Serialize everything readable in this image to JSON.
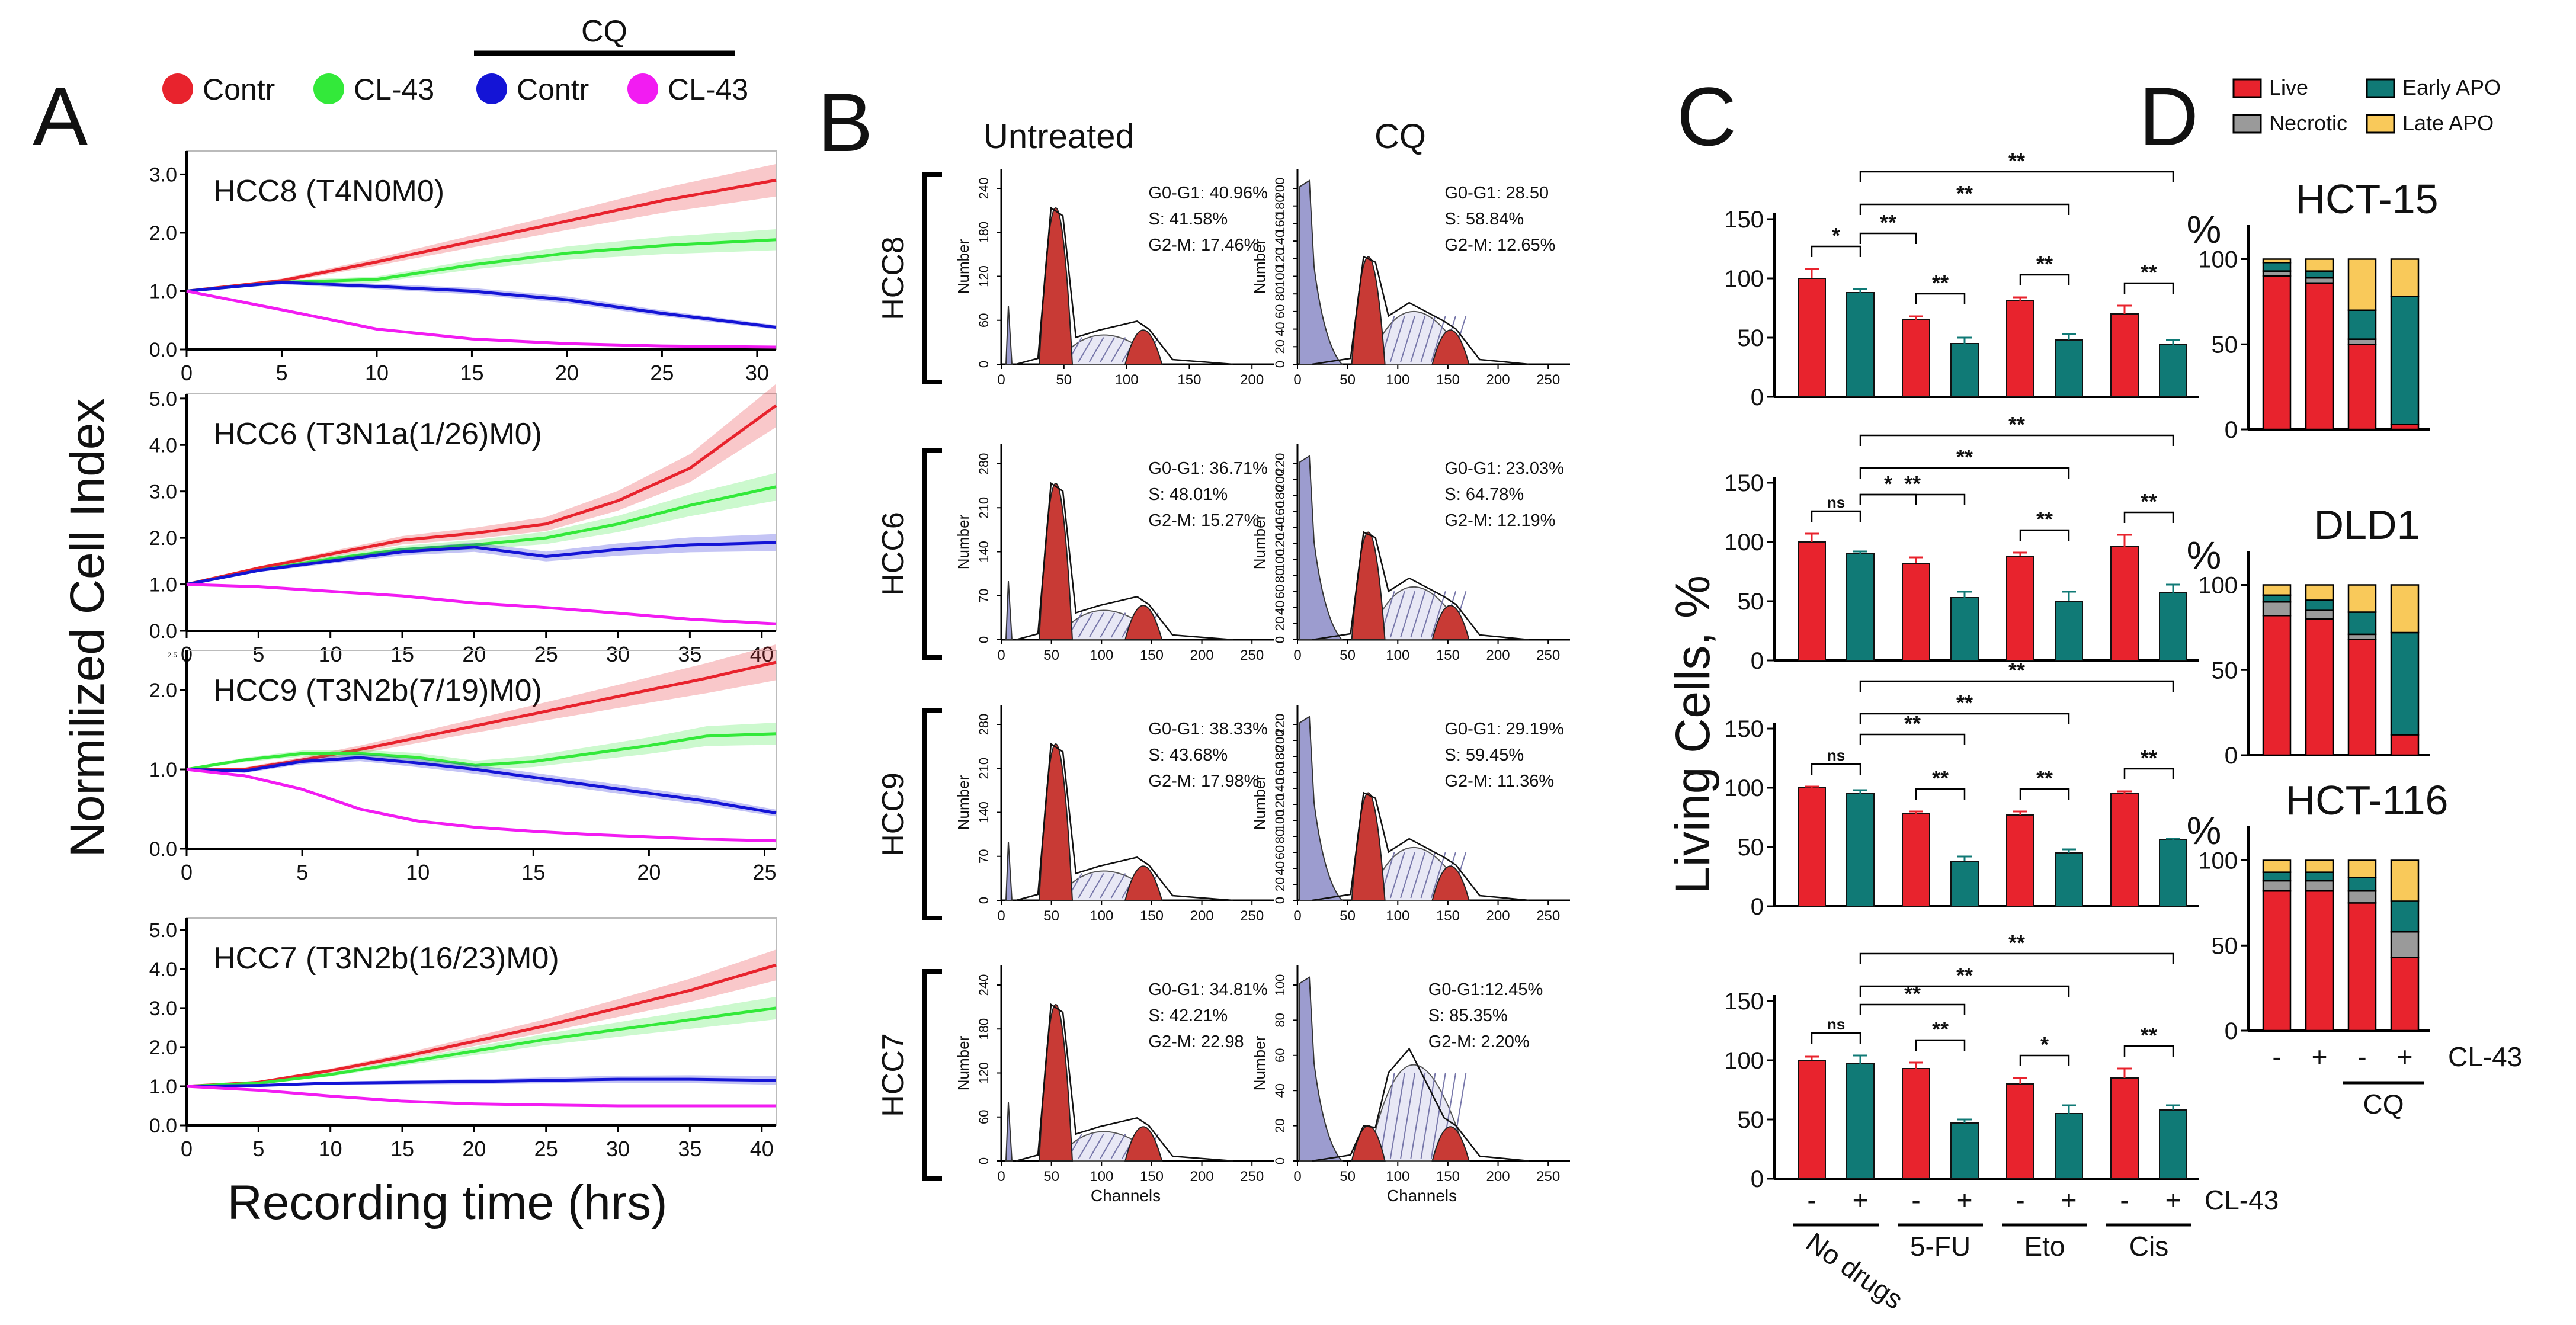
{
  "colors": {
    "red": "#e8232d",
    "green": "#33e93a",
    "blue": "#1414d6",
    "magenta": "#f21cf2",
    "teal": "#107a76",
    "gray": "#9a9a9a",
    "yellow": "#f9c95a",
    "flowred": "#c83a35",
    "flowblue": "#9c9ccf"
  },
  "panels": {
    "A": "A",
    "B": "B",
    "C": "C",
    "D": "D"
  },
  "panelA": {
    "cq_label": "CQ",
    "legend": [
      "Contr",
      "CL-43",
      "Contr",
      "CL-43"
    ],
    "ylabel": "Normilized Cell Index",
    "xlabel": "Recording time (hrs)"
  },
  "panelB": {
    "col_titles": [
      "Untreated",
      "CQ"
    ],
    "ylabel": "Number",
    "xlabel": "Channels"
  },
  "panelC": {
    "ylabel": "Living Cells, %",
    "cl43_label": "CL-43",
    "signs": [
      "-",
      "+",
      "-",
      "+",
      "-",
      "+",
      "-",
      "+"
    ],
    "groups": [
      "No drugs",
      "5-FU",
      "Eto",
      "Cis"
    ]
  },
  "panelD": {
    "legend": [
      "Live",
      "Necrotic",
      "Early APO",
      "Late APO"
    ],
    "pct": "%",
    "signs": [
      "-",
      "+",
      "-",
      "+"
    ],
    "cl43_label": "CL-43",
    "cq_label": "CQ"
  },
  "chart_data": [
    {
      "panel": "A",
      "type": "line",
      "title": "HCC8 (T4N0M0)",
      "xlim": [
        0,
        31
      ],
      "xticks": [
        "0",
        "5",
        "10",
        "15",
        "20",
        "25",
        "30"
      ],
      "ylim": [
        0,
        3.4
      ],
      "yticks": [
        "0.0",
        "1.0",
        "2.0",
        "3.0"
      ],
      "series": [
        {
          "name": "Contr",
          "x": [
            0,
            5,
            10,
            15,
            20,
            25,
            31
          ],
          "y": [
            1.0,
            1.18,
            1.5,
            1.85,
            2.2,
            2.55,
            2.9
          ]
        },
        {
          "name": "CL-43",
          "x": [
            0,
            5,
            10,
            15,
            20,
            25,
            31
          ],
          "y": [
            1.0,
            1.15,
            1.2,
            1.45,
            1.65,
            1.78,
            1.88
          ]
        },
        {
          "name": "CQ Contr",
          "x": [
            0,
            5,
            10,
            15,
            20,
            25,
            31
          ],
          "y": [
            1.0,
            1.15,
            1.08,
            1.0,
            0.85,
            0.62,
            0.38
          ]
        },
        {
          "name": "CQ CL-43",
          "x": [
            0,
            5,
            10,
            15,
            20,
            25,
            31
          ],
          "y": [
            1.0,
            0.68,
            0.35,
            0.18,
            0.1,
            0.06,
            0.04
          ]
        }
      ]
    },
    {
      "panel": "A",
      "type": "line",
      "title": "HCC6 (T3N1a(1/26)M0)",
      "xlim": [
        0,
        41
      ],
      "xticks": [
        "0",
        "5",
        "10",
        "15",
        "20",
        "25",
        "30",
        "35",
        "40"
      ],
      "ylim": [
        0,
        5.1
      ],
      "yticks": [
        "0.0",
        "1.0",
        "2.0",
        "3.0",
        "4.0",
        "5.0"
      ],
      "series": [
        {
          "name": "Contr",
          "x": [
            0,
            5,
            10,
            15,
            20,
            25,
            30,
            35,
            41
          ],
          "y": [
            1.0,
            1.35,
            1.65,
            1.95,
            2.1,
            2.3,
            2.8,
            3.5,
            4.85
          ]
        },
        {
          "name": "CL-43",
          "x": [
            0,
            5,
            10,
            15,
            20,
            25,
            30,
            35,
            41
          ],
          "y": [
            1.0,
            1.3,
            1.55,
            1.75,
            1.85,
            2.0,
            2.3,
            2.7,
            3.1
          ]
        },
        {
          "name": "CQ Contr",
          "x": [
            0,
            5,
            10,
            15,
            20,
            25,
            30,
            35,
            41
          ],
          "y": [
            1.0,
            1.3,
            1.5,
            1.7,
            1.8,
            1.6,
            1.75,
            1.85,
            1.9
          ]
        },
        {
          "name": "CQ CL-43",
          "x": [
            0,
            5,
            10,
            15,
            20,
            25,
            30,
            35,
            41
          ],
          "y": [
            1.0,
            0.95,
            0.85,
            0.75,
            0.6,
            0.5,
            0.38,
            0.25,
            0.15
          ]
        }
      ]
    },
    {
      "panel": "A",
      "type": "line",
      "title": "HCC9 (T3N2b(7/19)M0)",
      "xlim": [
        0,
        25.5
      ],
      "xticks": [
        "0",
        "5",
        "10",
        "15",
        "20",
        "25"
      ],
      "ylim": [
        0,
        2.5
      ],
      "yticks": [
        "0.0",
        "1.0",
        "2.0"
      ],
      "ytopnote": "2.5",
      "series": [
        {
          "name": "Contr",
          "x": [
            0,
            2.5,
            5,
            7.5,
            10,
            12.5,
            15,
            17.5,
            20,
            22.5,
            25.5
          ],
          "y": [
            1.0,
            1.0,
            1.12,
            1.25,
            1.4,
            1.55,
            1.7,
            1.85,
            2.0,
            2.15,
            2.35
          ]
        },
        {
          "name": "CL-43",
          "x": [
            0,
            2.5,
            5,
            7.5,
            10,
            12.5,
            15,
            17.5,
            20,
            22.5,
            25.5
          ],
          "y": [
            1.0,
            1.12,
            1.2,
            1.2,
            1.15,
            1.05,
            1.1,
            1.2,
            1.3,
            1.42,
            1.45
          ]
        },
        {
          "name": "CQ Contr",
          "x": [
            0,
            2.5,
            5,
            7.5,
            10,
            12.5,
            15,
            17.5,
            20,
            22.5,
            25.5
          ],
          "y": [
            1.0,
            0.98,
            1.1,
            1.15,
            1.08,
            1.0,
            0.9,
            0.8,
            0.7,
            0.6,
            0.45
          ]
        },
        {
          "name": "CQ CL-43",
          "x": [
            0,
            2.5,
            5,
            7.5,
            10,
            12.5,
            15,
            17.5,
            20,
            22.5,
            25.5
          ],
          "y": [
            1.0,
            0.92,
            0.75,
            0.5,
            0.35,
            0.27,
            0.22,
            0.18,
            0.15,
            0.12,
            0.1
          ]
        }
      ]
    },
    {
      "panel": "A",
      "type": "line",
      "title": "HCC7 (T3N2b(16/23)M0)",
      "xlim": [
        0,
        41
      ],
      "xticks": [
        "0",
        "5",
        "10",
        "15",
        "20",
        "25",
        "30",
        "35",
        "40"
      ],
      "ylim": [
        0,
        5.3
      ],
      "yticks": [
        "0.0",
        "1.0",
        "2.0",
        "3.0",
        "4.0",
        "5.0"
      ],
      "series": [
        {
          "name": "Contr",
          "x": [
            0,
            5,
            10,
            15,
            20,
            25,
            30,
            35,
            41
          ],
          "y": [
            1.0,
            1.1,
            1.4,
            1.75,
            2.15,
            2.55,
            3.0,
            3.45,
            4.1
          ]
        },
        {
          "name": "CL-43",
          "x": [
            0,
            5,
            10,
            15,
            20,
            25,
            30,
            35,
            41
          ],
          "y": [
            1.0,
            1.08,
            1.3,
            1.6,
            1.9,
            2.2,
            2.45,
            2.7,
            3.0
          ]
        },
        {
          "name": "CQ Contr",
          "x": [
            0,
            5,
            10,
            15,
            20,
            25,
            30,
            35,
            41
          ],
          "y": [
            1.0,
            1.02,
            1.08,
            1.1,
            1.12,
            1.15,
            1.18,
            1.18,
            1.15
          ]
        },
        {
          "name": "CQ CL-43",
          "x": [
            0,
            5,
            10,
            15,
            20,
            25,
            30,
            35,
            41
          ],
          "y": [
            1.0,
            0.9,
            0.75,
            0.62,
            0.55,
            0.52,
            0.5,
            0.5,
            0.5
          ]
        }
      ]
    },
    {
      "panel": "B",
      "type": "area",
      "row": "HCC8",
      "condition": "Untreated",
      "yticks": [
        "0",
        "60",
        "120",
        "180",
        "240"
      ],
      "xticks": [
        "0",
        "50",
        "100",
        "150",
        "200"
      ],
      "stats": [
        "G0-G1: 40.96%",
        "S: 41.58%",
        "G2-M: 17.46%"
      ]
    },
    {
      "panel": "B",
      "type": "area",
      "row": "HCC8",
      "condition": "CQ",
      "yticks": [
        "0",
        "20",
        "40",
        "60",
        "80",
        "100",
        "120",
        "140",
        "160",
        "180",
        "200"
      ],
      "xticks": [
        "0",
        "50",
        "100",
        "150",
        "200",
        "250"
      ],
      "stats": [
        "G0-G1: 28.50",
        "S: 58.84%",
        "G2-M: 12.65%"
      ]
    },
    {
      "panel": "B",
      "type": "area",
      "row": "HCC6",
      "condition": "Untreated",
      "yticks": [
        "0",
        "70",
        "140",
        "210",
        "280"
      ],
      "xticks": [
        "0",
        "50",
        "100",
        "150",
        "200",
        "250"
      ],
      "stats": [
        "G0-G1: 36.71%",
        "S: 48.01%",
        "G2-M: 15.27%"
      ]
    },
    {
      "panel": "B",
      "type": "area",
      "row": "HCC6",
      "condition": "CQ",
      "yticks": [
        "0",
        "20",
        "40",
        "60",
        "80",
        "100",
        "120",
        "140",
        "160",
        "180",
        "200",
        "220"
      ],
      "xticks": [
        "0",
        "50",
        "100",
        "150",
        "200",
        "250"
      ],
      "stats": [
        "G0-G1: 23.03%",
        "S: 64.78%",
        "G2-M: 12.19%"
      ]
    },
    {
      "panel": "B",
      "type": "area",
      "row": "HCC9",
      "condition": "Untreated",
      "yticks": [
        "0",
        "70",
        "140",
        "210",
        "280"
      ],
      "xticks": [
        "0",
        "50",
        "100",
        "150",
        "200",
        "250"
      ],
      "stats": [
        "G0-G1: 38.33%",
        "S: 43.68%",
        "G2-M: 17.98%"
      ]
    },
    {
      "panel": "B",
      "type": "area",
      "row": "HCC9",
      "condition": "CQ",
      "yticks": [
        "0",
        "20",
        "40",
        "60",
        "80",
        "100",
        "120",
        "140",
        "160",
        "180",
        "200",
        "220"
      ],
      "xticks": [
        "0",
        "50",
        "100",
        "150",
        "200",
        "250"
      ],
      "stats": [
        "G0-G1: 29.19%",
        "S: 59.45%",
        "G2-M: 11.36%"
      ]
    },
    {
      "panel": "B",
      "type": "area",
      "row": "HCC7",
      "condition": "Untreated",
      "yticks": [
        "0",
        "60",
        "120",
        "180",
        "240"
      ],
      "xticks": [
        "0",
        "50",
        "100",
        "150",
        "200",
        "250"
      ],
      "stats": [
        "G0-G1: 34.81%",
        "S: 42.21%",
        "G2-M: 22.98"
      ]
    },
    {
      "panel": "B",
      "type": "area",
      "row": "HCC7",
      "condition": "CQ",
      "yticks": [
        "0",
        "20",
        "40",
        "60",
        "80",
        "100"
      ],
      "xticks": [
        "0",
        "50",
        "100",
        "150",
        "200",
        "250"
      ],
      "stats": [
        "G0-G1:12.45%",
        "S: 85.35%",
        "G2-M: 2.20%"
      ]
    },
    {
      "panel": "C",
      "type": "bar",
      "ylim": [
        0,
        150
      ],
      "yticks": [
        "0",
        "50",
        "100",
        "150"
      ],
      "values": [
        100,
        88,
        65,
        45,
        81,
        48,
        70,
        44
      ],
      "errors": [
        8,
        3,
        3,
        5,
        3,
        5,
        7,
        4
      ],
      "sig": [
        {
          "a": 0,
          "b": 1,
          "label": "*"
        },
        {
          "a": 1,
          "b": 2,
          "label": "**"
        },
        {
          "a": 2,
          "b": 3,
          "label": "**"
        },
        {
          "a": 4,
          "b": 5,
          "label": "**"
        },
        {
          "a": 6,
          "b": 7,
          "label": "**"
        },
        {
          "a": 1,
          "b": 5,
          "label": "**"
        },
        {
          "a": 1,
          "b": 7,
          "label": "**"
        }
      ]
    },
    {
      "panel": "C",
      "type": "bar",
      "ylim": [
        0,
        150
      ],
      "yticks": [
        "0",
        "50",
        "100",
        "150"
      ],
      "values": [
        100,
        90,
        82,
        53,
        88,
        50,
        96,
        57
      ],
      "errors": [
        7,
        2,
        5,
        5,
        3,
        8,
        10,
        7
      ],
      "sig": [
        {
          "a": 0,
          "b": 1,
          "label": "ns"
        },
        {
          "a": 1,
          "b": 2,
          "label": "*"
        },
        {
          "a": 1,
          "b": 3,
          "label": "**"
        },
        {
          "a": 4,
          "b": 5,
          "label": "**"
        },
        {
          "a": 6,
          "b": 7,
          "label": "**"
        },
        {
          "a": 1,
          "b": 5,
          "label": "**"
        },
        {
          "a": 1,
          "b": 7,
          "label": "**"
        }
      ]
    },
    {
      "panel": "C",
      "type": "bar",
      "ylim": [
        0,
        150
      ],
      "yticks": [
        "0",
        "50",
        "100",
        "150"
      ],
      "values": [
        100,
        95,
        78,
        38,
        77,
        45,
        95,
        56
      ],
      "errors": [
        1,
        3,
        2,
        4,
        3,
        3,
        2,
        1
      ],
      "sig": [
        {
          "a": 0,
          "b": 1,
          "label": "ns"
        },
        {
          "a": 2,
          "b": 3,
          "label": "**"
        },
        {
          "a": 1,
          "b": 3,
          "label": "**"
        },
        {
          "a": 4,
          "b": 5,
          "label": "**"
        },
        {
          "a": 6,
          "b": 7,
          "label": "**"
        },
        {
          "a": 1,
          "b": 5,
          "label": "**"
        },
        {
          "a": 1,
          "b": 7,
          "label": "**"
        }
      ]
    },
    {
      "panel": "C",
      "type": "bar",
      "ylim": [
        0,
        150
      ],
      "yticks": [
        "0",
        "50",
        "100",
        "150"
      ],
      "values": [
        100,
        97,
        93,
        47,
        80,
        55,
        85,
        58
      ],
      "errors": [
        3,
        7,
        5,
        3,
        5,
        7,
        8,
        4
      ],
      "sig": [
        {
          "a": 0,
          "b": 1,
          "label": "ns"
        },
        {
          "a": 2,
          "b": 3,
          "label": "**"
        },
        {
          "a": 1,
          "b": 3,
          "label": "**"
        },
        {
          "a": 4,
          "b": 5,
          "label": "*"
        },
        {
          "a": 6,
          "b": 7,
          "label": "**"
        },
        {
          "a": 1,
          "b": 5,
          "label": "**"
        },
        {
          "a": 1,
          "b": 7,
          "label": "**"
        }
      ]
    },
    {
      "panel": "D",
      "type": "bar",
      "stacked": true,
      "title": "HCT-15",
      "ylim": [
        0,
        120
      ],
      "yticks": [
        "0",
        "50",
        "100"
      ],
      "series": [
        {
          "name": "Live",
          "values": [
            90,
            86,
            50,
            3
          ]
        },
        {
          "name": "Necrotic",
          "values": [
            3,
            3,
            3,
            0
          ]
        },
        {
          "name": "Early APO",
          "values": [
            5,
            4,
            17,
            75
          ]
        },
        {
          "name": "Late APO",
          "values": [
            2,
            7,
            30,
            22
          ]
        }
      ]
    },
    {
      "panel": "D",
      "type": "bar",
      "stacked": true,
      "title": "DLD1",
      "ylim": [
        0,
        120
      ],
      "yticks": [
        "0",
        "50",
        "100"
      ],
      "series": [
        {
          "name": "Live",
          "values": [
            82,
            80,
            68,
            12
          ]
        },
        {
          "name": "Necrotic",
          "values": [
            8,
            5,
            3,
            0
          ]
        },
        {
          "name": "Early APO",
          "values": [
            4,
            6,
            13,
            60
          ]
        },
        {
          "name": "Late APO",
          "values": [
            6,
            9,
            16,
            28
          ]
        }
      ]
    },
    {
      "panel": "D",
      "type": "bar",
      "stacked": true,
      "title": "HCT-116",
      "ylim": [
        0,
        120
      ],
      "yticks": [
        "0",
        "50",
        "100"
      ],
      "series": [
        {
          "name": "Live",
          "values": [
            82,
            82,
            75,
            43
          ]
        },
        {
          "name": "Necrotic",
          "values": [
            6,
            6,
            7,
            15
          ]
        },
        {
          "name": "Early APO",
          "values": [
            5,
            5,
            8,
            18
          ]
        },
        {
          "name": "Late APO",
          "values": [
            7,
            7,
            10,
            24
          ]
        }
      ]
    }
  ]
}
